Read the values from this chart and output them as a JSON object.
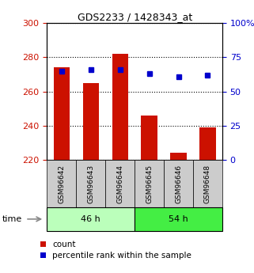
{
  "title": "GDS2233 / 1428343_at",
  "samples": [
    "GSM96642",
    "GSM96643",
    "GSM96644",
    "GSM96645",
    "GSM96646",
    "GSM96648"
  ],
  "counts": [
    274,
    265,
    282,
    246,
    224,
    239
  ],
  "percentiles": [
    65,
    66,
    66,
    63,
    61,
    62
  ],
  "ylim_left": [
    220,
    300
  ],
  "ylim_right": [
    0,
    100
  ],
  "yticks_left": [
    220,
    240,
    260,
    280,
    300
  ],
  "yticks_right": [
    0,
    25,
    50,
    75,
    100
  ],
  "groups": [
    {
      "label": "46 h",
      "indices": [
        0,
        1,
        2
      ],
      "color": "#bbffbb"
    },
    {
      "label": "54 h",
      "indices": [
        3,
        4,
        5
      ],
      "color": "#44ee44"
    }
  ],
  "bar_color": "#cc1100",
  "dot_color": "#0000cc",
  "bar_width": 0.55,
  "bg_color": "#ffffff",
  "left_tick_color": "#cc1100",
  "right_tick_color": "#0000cc",
  "time_label": "time",
  "legend_count": "count",
  "legend_percentile": "percentile rank within the sample",
  "sample_label_facecolor": "#cccccc",
  "sample_label_edgecolor": "#999999"
}
